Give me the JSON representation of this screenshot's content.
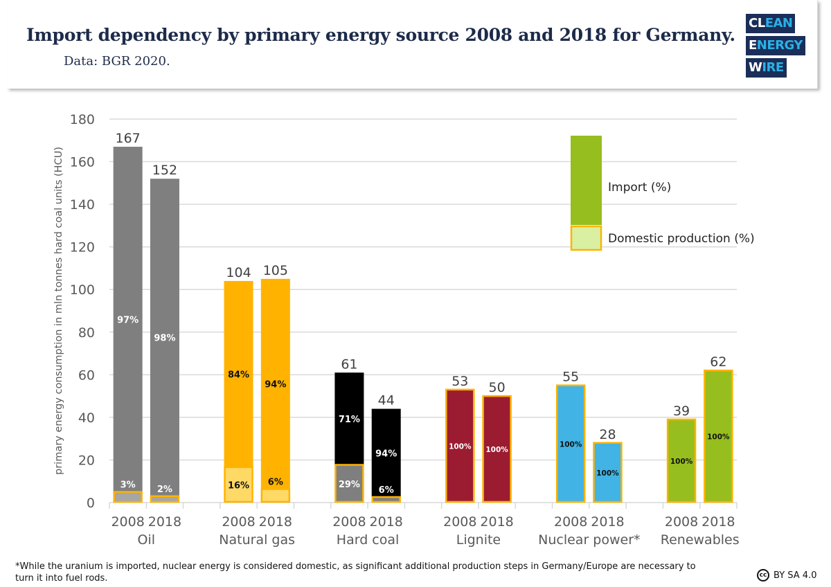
{
  "header": {
    "title": "Import dependency by primary energy source 2008 and 2018 for Germany.",
    "subtitle": "Data: BGR 2020."
  },
  "logo": {
    "lines": [
      "CLEAN",
      "ENERGY",
      "WIRE"
    ]
  },
  "footer": {
    "footnote": "*While the uranium is imported, nuclear energy is considered domestic, as significant additional production steps in Germany/Europe are necessary to turn it into fuel rods.",
    "license": "BY SA 4.0",
    "license_icon": "cc-icon"
  },
  "chart_data": {
    "type": "bar",
    "stacked": true,
    "ylabel": "primary energy consumption in mln tonnes hard coal units (HCU)",
    "ylim": [
      0,
      180
    ],
    "yticks": [
      0,
      20,
      40,
      60,
      80,
      100,
      120,
      140,
      160,
      180
    ],
    "grid": true,
    "legend": {
      "position": "top-right",
      "entries": [
        {
          "label": "Import (%)",
          "color": "#96be1e"
        },
        {
          "label": "Domestic production (%)",
          "color": "#d9f0a3",
          "outline": "#ffb300"
        }
      ]
    },
    "groups": [
      {
        "name": "Oil",
        "import_color": "#7f7f7f",
        "domestic_color": "#a6a6a6",
        "label_color": "#ffffff",
        "bars": [
          {
            "year": "2008",
            "total": 167,
            "import_pct": "97%",
            "domestic_pct": "3%",
            "domestic": 5
          },
          {
            "year": "2018",
            "total": 152,
            "import_pct": "98%",
            "domestic_pct": "2%",
            "domestic": 3
          }
        ]
      },
      {
        "name": "Natural gas",
        "import_color": "#ffb300",
        "domestic_color": "#ffd966",
        "label_color": "#111111",
        "bars": [
          {
            "year": "2008",
            "total": 104,
            "import_pct": "84%",
            "domestic_pct": "16%",
            "domestic": 16.6
          },
          {
            "year": "2018",
            "total": 105,
            "import_pct": "94%",
            "domestic_pct": "6%",
            "domestic": 6.3
          }
        ]
      },
      {
        "name": "Hard coal",
        "import_color": "#000000",
        "domestic_color": "#7f7f7f",
        "label_color": "#ffffff",
        "bars": [
          {
            "year": "2008",
            "total": 61,
            "import_pct": "71%",
            "domestic_pct": "29%",
            "domestic": 17.7
          },
          {
            "year": "2018",
            "total": 44,
            "import_pct": "94%",
            "domestic_pct": "6%",
            "domestic": 2.6
          }
        ]
      },
      {
        "name": "Lignite",
        "import_color": "#9b1c31",
        "domestic_color": "#9b1c31",
        "label_color": "#ffffff",
        "bars": [
          {
            "year": "2008",
            "total": 53,
            "import_pct": "",
            "domestic_pct": "100%",
            "domestic": 53
          },
          {
            "year": "2018",
            "total": 50,
            "import_pct": "",
            "domestic_pct": "100%",
            "domestic": 50
          }
        ]
      },
      {
        "name": "Nuclear power*",
        "import_color": "#41b3e4",
        "domestic_color": "#41b3e4",
        "label_color": "#111111",
        "bars": [
          {
            "year": "2008",
            "total": 55,
            "import_pct": "",
            "domestic_pct": "100%",
            "domestic": 55
          },
          {
            "year": "2018",
            "total": 28,
            "import_pct": "",
            "domestic_pct": "100%",
            "domestic": 28
          }
        ]
      },
      {
        "name": "Renewables",
        "import_color": "#96be1e",
        "domestic_color": "#96be1e",
        "label_color": "#111111",
        "bars": [
          {
            "year": "2008",
            "total": 39,
            "import_pct": "",
            "domestic_pct": "100%",
            "domestic": 39
          },
          {
            "year": "2018",
            "total": 62,
            "import_pct": "",
            "domestic_pct": "100%",
            "domestic": 62
          }
        ]
      }
    ],
    "outline_color": "#ffb300"
  }
}
